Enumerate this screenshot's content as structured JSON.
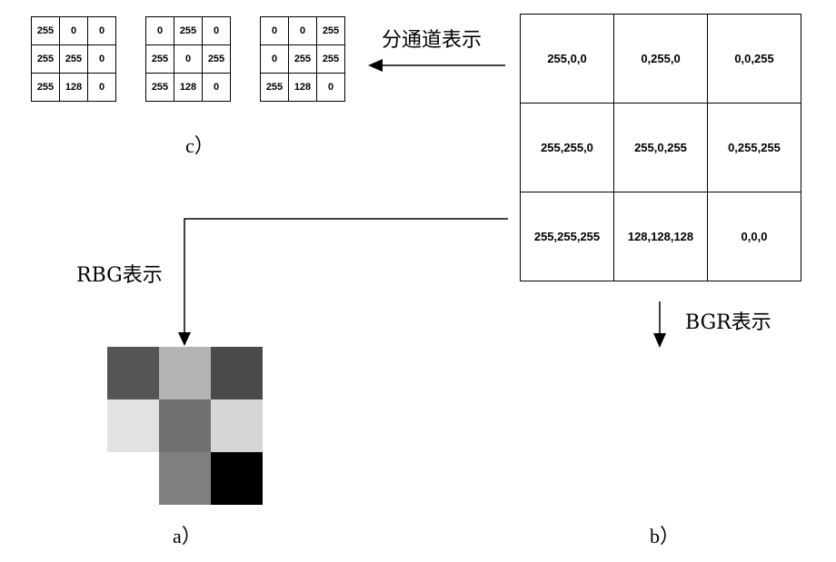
{
  "channel_grids": [
    {
      "rows": [
        [
          "255",
          "0",
          "0"
        ],
        [
          "255",
          "255",
          "0"
        ],
        [
          "255",
          "128",
          "0"
        ]
      ]
    },
    {
      "rows": [
        [
          "0",
          "255",
          "0"
        ],
        [
          "255",
          "0",
          "255"
        ],
        [
          "255",
          "128",
          "0"
        ]
      ]
    },
    {
      "rows": [
        [
          "0",
          "0",
          "255"
        ],
        [
          "0",
          "255",
          "255"
        ],
        [
          "255",
          "128",
          "0"
        ]
      ]
    }
  ],
  "bgr_grid": {
    "rows": [
      [
        "255,0,0",
        "0,255,0",
        "0,0,255"
      ],
      [
        "255,255,0",
        "255,0,255",
        "0,255,255"
      ],
      [
        "255,255,255",
        "128,128,128",
        "0,0,0"
      ]
    ]
  },
  "gray_grid": {
    "cells": [
      [
        "#555555",
        "#b3b3b3",
        "#4a4a4a"
      ],
      [
        "#e2e2e2",
        "#707070",
        "#d6d6d6"
      ],
      [
        "#ffffff",
        "#808080",
        "#000000"
      ]
    ]
  },
  "labels": {
    "channel": "分通道表示",
    "rbg": "RBG表示",
    "bgr": "BGR表示",
    "caption_a": "a）",
    "caption_b": "b）",
    "caption_c": "c）"
  }
}
